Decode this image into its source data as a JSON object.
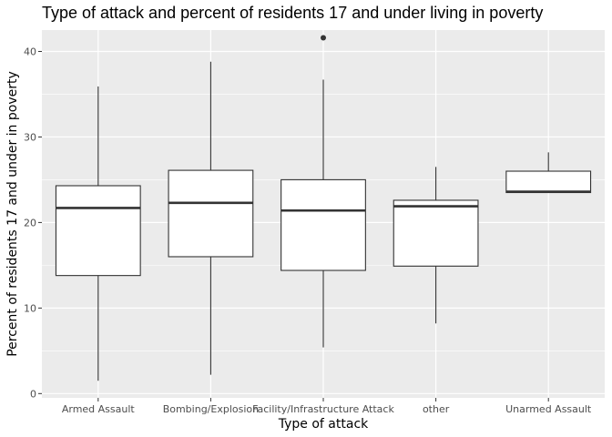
{
  "chart_data": {
    "type": "boxplot",
    "title": "Type of attack and percent of residents 17 and under living in poverty",
    "xlabel": "Type of attack",
    "ylabel": "Percent of residents 17 and under in poverty",
    "ylim": [
      -0.5,
      42.5
    ],
    "yticks": [
      0,
      10,
      20,
      30,
      40
    ],
    "grid": true,
    "legend": "none",
    "categories": [
      "Armed Assault",
      "Bombing/Explosion",
      "Facility/Infrastructure Attack",
      "other",
      "Unarmed Assault"
    ],
    "boxes": [
      {
        "category": "Armed Assault",
        "min": 1.5,
        "q1": 13.8,
        "median": 21.7,
        "q3": 24.3,
        "max": 35.9,
        "outliers": []
      },
      {
        "category": "Bombing/Explosion",
        "min": 2.2,
        "q1": 16.0,
        "median": 22.3,
        "q3": 26.1,
        "max": 38.8,
        "outliers": []
      },
      {
        "category": "Facility/Infrastructure Attack",
        "min": 5.4,
        "q1": 14.4,
        "median": 21.4,
        "q3": 25.0,
        "max": 36.7,
        "outliers": [
          41.6
        ]
      },
      {
        "category": "other",
        "min": 8.2,
        "q1": 14.9,
        "median": 21.9,
        "q3": 22.6,
        "max": 26.5,
        "outliers": []
      },
      {
        "category": "Unarmed Assault",
        "min": 23.5,
        "q1": 23.5,
        "median": 23.6,
        "q3": 26.0,
        "max": 28.2,
        "outliers": []
      }
    ],
    "colors": {
      "panel": "#ebebeb",
      "grid": "#ffffff",
      "box_fill": "#ffffff",
      "box_line": "#333333"
    }
  }
}
